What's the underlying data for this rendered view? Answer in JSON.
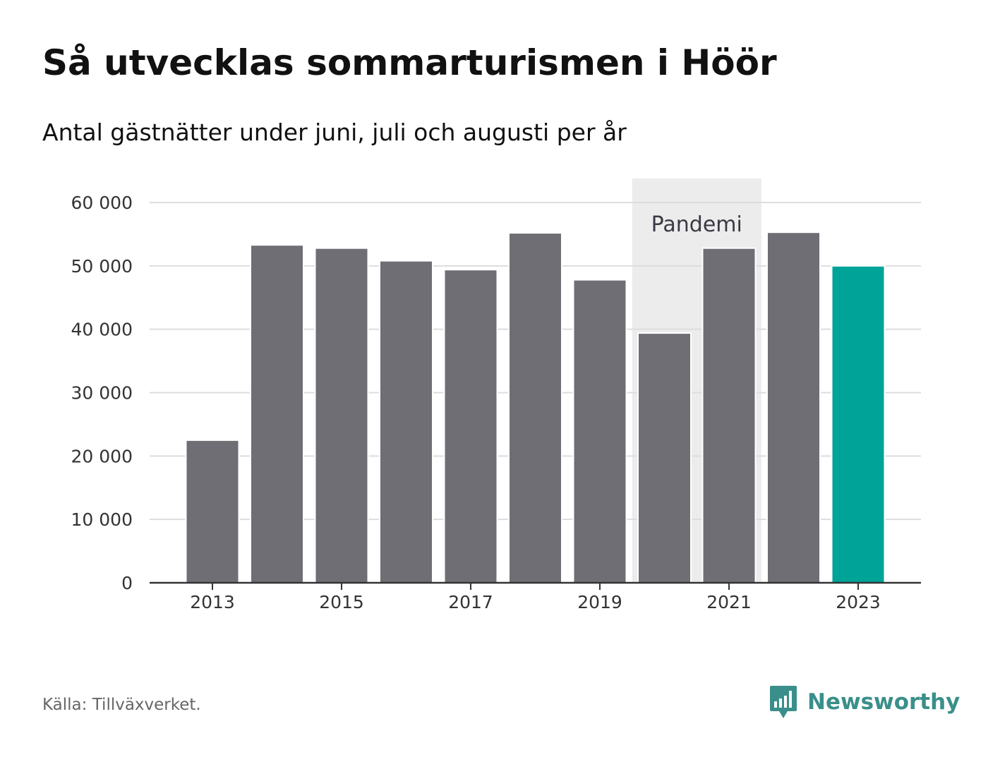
{
  "header": {
    "title": "Så utvecklas sommarturismen i Höör",
    "subtitle": "Antal gästnätter under juni, juli och augusti per år"
  },
  "footer": {
    "source": "Källa: Tillväxverket.",
    "brand": "Newsworthy"
  },
  "colors": {
    "bar": "#6f6e74",
    "highlight": "#00a398",
    "grid": "#dddddd",
    "axis": "#333333",
    "band": "#ececec",
    "brand": "#3a8f8a"
  },
  "icons": {
    "brand_logo": "bar-chart-speech-bubble-icon"
  },
  "chart_data": {
    "type": "bar",
    "categories": [
      "2013",
      "2014",
      "2015",
      "2016",
      "2017",
      "2018",
      "2019",
      "2020",
      "2021",
      "2022",
      "2023"
    ],
    "values": [
      22500,
      53300,
      52800,
      50800,
      49400,
      55200,
      47800,
      39400,
      52800,
      55300,
      50000
    ],
    "highlight_category": "2023",
    "y_ticks": [
      0,
      10000,
      20000,
      30000,
      40000,
      50000,
      60000
    ],
    "y_tick_labels": [
      "0",
      "10 000",
      "20 000",
      "30 000",
      "40 000",
      "50 000",
      "60 000"
    ],
    "x_tick_labels": [
      "2013",
      "2015",
      "2017",
      "2019",
      "2021",
      "2023"
    ],
    "ylim": [
      0,
      60000
    ],
    "grid": true,
    "annotations": [
      {
        "text": "Pandemi",
        "x_start": "2020",
        "x_end": "2021"
      }
    ]
  }
}
